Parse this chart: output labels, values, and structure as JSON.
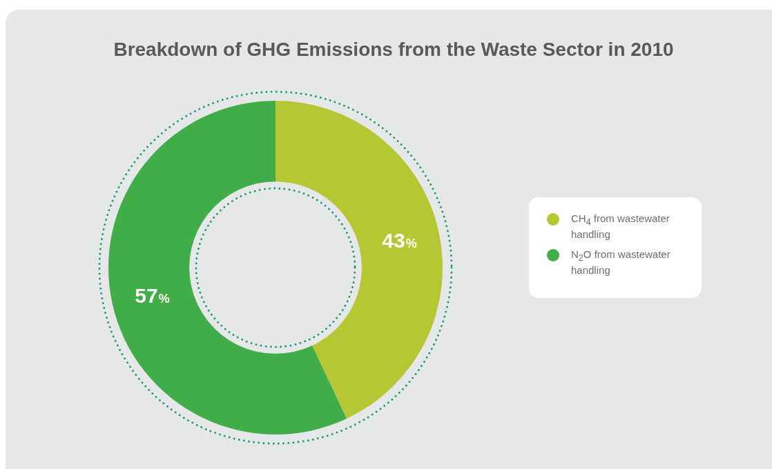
{
  "chart_data": {
    "type": "donut",
    "title": "Breakdown of GHG Emissions from the Waste Sector in 2010",
    "categories": [
      "CH$_{4}$ from wastewater handling",
      "N$_{2}$O from wastewater handling"
    ],
    "values": [
      43,
      57
    ],
    "colors": [
      "#b5c833",
      "#41ad49"
    ],
    "value_labels": [
      "43%",
      "57%"
    ],
    "legend": "right"
  }
}
